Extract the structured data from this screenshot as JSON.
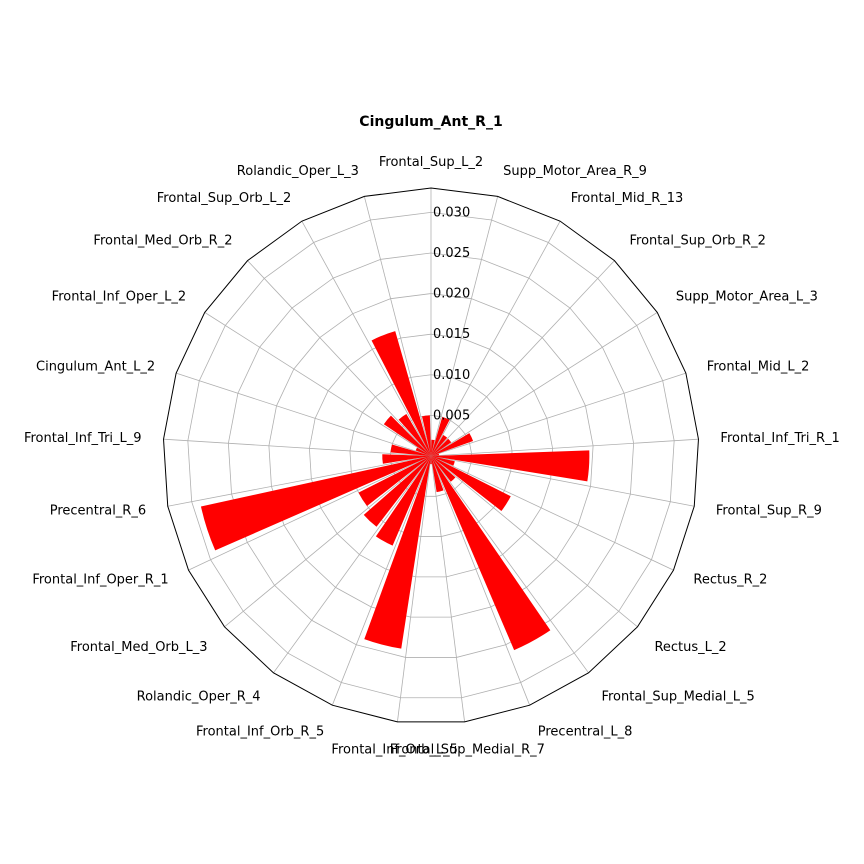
{
  "chart_data": {
    "type": "polar-bar",
    "title": "Cingulum_Ant_R_1",
    "bar_color": "#ff0000",
    "grid": true,
    "rlim": [
      0,
      0.033
    ],
    "r_ticks": [
      "0.005",
      "0.010",
      "0.015",
      "0.020",
      "0.025",
      "0.030"
    ],
    "r_tick_values": [
      0.005,
      0.01,
      0.015,
      0.02,
      0.025,
      0.03
    ],
    "categories": [
      "Frontal_Sup_L_2",
      "Supp_Motor_Area_R_9",
      "Frontal_Mid_R_13",
      "Frontal_Sup_Orb_R_2",
      "Supp_Motor_Area_L_3",
      "Frontal_Mid_L_2",
      "Frontal_Inf_Tri_R_1",
      "Frontal_Sup_R_9",
      "Rectus_R_2",
      "Rectus_L_2",
      "Frontal_Sup_Medial_L_5",
      "Precentral_L_8",
      "Frontal_Sup_Medial_R_7",
      "Frontal_Inf_Orb_L_5",
      "Frontal_Inf_Orb_R_5",
      "Rolandic_Oper_R_4",
      "Frontal_Med_Orb_L_3",
      "Frontal_Inf_Oper_R_1",
      "Precentral_R_6",
      "Frontal_Inf_Tri_L_9",
      "Cingulum_Ant_L_2",
      "Frontal_Inf_Oper_L_2",
      "Frontal_Med_Orb_R_2",
      "Frontal_Sup_Orb_L_2",
      "Rolandic_Oper_L_3"
    ],
    "bar_values": [
      0.002,
      0.005,
      0.003,
      0.003,
      0.0055,
      0.001,
      0.0195,
      0.003,
      0.011,
      0.004,
      0.026,
      0.0045,
      0.001,
      0.024,
      0.012,
      0.011,
      0.01,
      0.029,
      0.006,
      0.005,
      0.002,
      0.007,
      0.006,
      0.016,
      0.005
    ],
    "labeled_bars": "bars between consecutive labeled spokes"
  }
}
